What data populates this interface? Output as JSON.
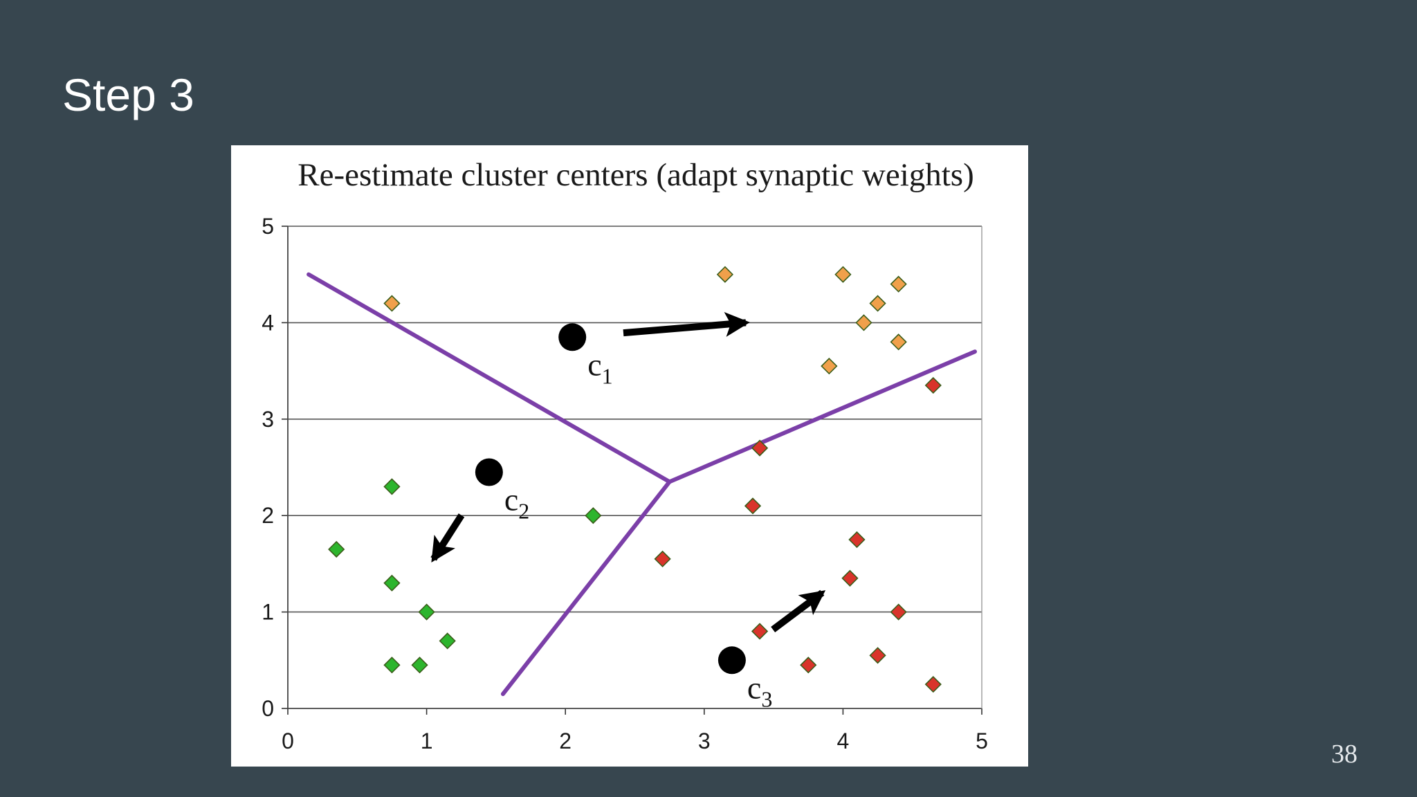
{
  "slide": {
    "title": "Step 3",
    "page_number": "38",
    "background_color": "#37464f"
  },
  "chart_data": {
    "type": "scatter",
    "title": "Re-estimate cluster centers (adapt synaptic weights)",
    "xlabel": "",
    "ylabel": "",
    "xlim": [
      0,
      5
    ],
    "ylim": [
      0,
      5
    ],
    "xticks": [
      "0",
      "1",
      "2",
      "3",
      "4",
      "5"
    ],
    "yticks": [
      "0",
      "1",
      "2",
      "3",
      "4",
      "5"
    ],
    "grid": "horizontal",
    "legend": "none",
    "colors": {
      "cluster_1": "#f0a04b",
      "cluster_2": "#2db52d",
      "cluster_3": "#d9342b",
      "boundary": "#7b3fa8",
      "centroid": "#000000",
      "grid": "#555555"
    },
    "series": [
      {
        "points": [
          {
            "x": 0.75,
            "y": 4.2
          },
          {
            "x": 3.15,
            "y": 4.5
          },
          {
            "x": 4.0,
            "y": 4.5
          },
          {
            "x": 4.4,
            "y": 4.4
          },
          {
            "x": 4.25,
            "y": 4.2
          },
          {
            "x": 4.15,
            "y": 4.0
          },
          {
            "x": 4.4,
            "y": 3.8
          },
          {
            "x": 3.9,
            "y": 3.55
          }
        ],
        "fill": "#f0a04b"
      },
      {
        "points": [
          {
            "x": 0.35,
            "y": 1.65
          },
          {
            "x": 0.75,
            "y": 2.3
          },
          {
            "x": 0.75,
            "y": 1.3
          },
          {
            "x": 1.0,
            "y": 1.0
          },
          {
            "x": 1.15,
            "y": 0.7
          },
          {
            "x": 0.75,
            "y": 0.45
          },
          {
            "x": 0.95,
            "y": 0.45
          },
          {
            "x": 2.2,
            "y": 2.0
          }
        ],
        "fill": "#2db52d"
      },
      {
        "points": [
          {
            "x": 4.65,
            "y": 3.35
          },
          {
            "x": 3.4,
            "y": 2.7
          },
          {
            "x": 3.35,
            "y": 2.1
          },
          {
            "x": 2.7,
            "y": 1.55
          },
          {
            "x": 4.1,
            "y": 1.75
          },
          {
            "x": 4.05,
            "y": 1.35
          },
          {
            "x": 4.4,
            "y": 1.0
          },
          {
            "x": 3.4,
            "y": 0.8
          },
          {
            "x": 3.75,
            "y": 0.45
          },
          {
            "x": 4.25,
            "y": 0.55
          },
          {
            "x": 4.65,
            "y": 0.25
          }
        ],
        "fill": "#d9342b"
      }
    ],
    "boundaries": [
      [
        [
          0.15,
          4.5
        ],
        [
          2.75,
          2.35
        ]
      ],
      [
        [
          2.75,
          2.35
        ],
        [
          4.95,
          3.7
        ]
      ],
      [
        [
          2.75,
          2.35
        ],
        [
          1.55,
          0.15
        ]
      ]
    ],
    "centroids": [
      {
        "name": "c",
        "subscript": "1",
        "x": 2.05,
        "y": 3.85,
        "move_to": {
          "x": 3.3,
          "y": 4.0
        }
      },
      {
        "name": "c",
        "subscript": "2",
        "x": 1.45,
        "y": 2.45,
        "move_to": {
          "x": 1.05,
          "y": 1.55
        }
      },
      {
        "name": "c",
        "subscript": "3",
        "x": 3.2,
        "y": 0.5,
        "move_to": {
          "x": 3.85,
          "y": 1.2
        }
      }
    ]
  }
}
